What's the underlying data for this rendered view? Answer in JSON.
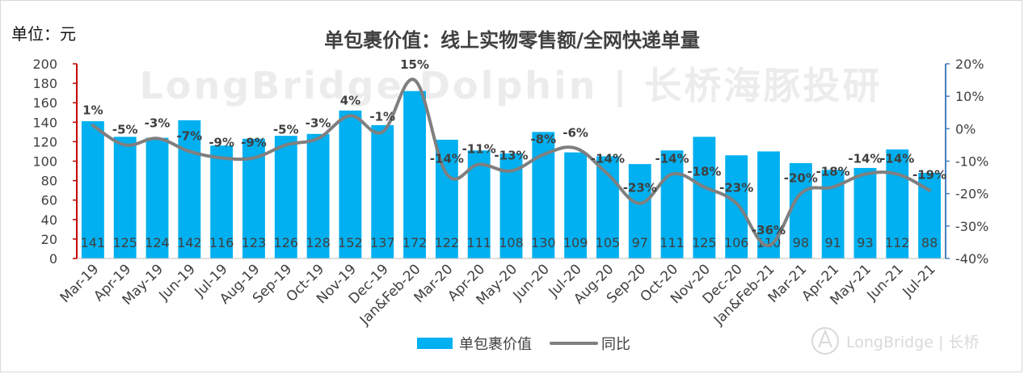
{
  "unit_label": "单位：元",
  "title": "单包裹价值：线上实物零售额/全网快递单量",
  "watermark": {
    "main": "LongBridge Dolphin | 长桥海豚投研",
    "logo": "LongBridge | 长桥"
  },
  "colors": {
    "bar": "#00b0f0",
    "line": "#7f7f7f",
    "left_axis": "#c00000",
    "right_axis": "#4a7ebb"
  },
  "chart_data": {
    "type": "bar",
    "title": "单包裹价值：线上实物零售额/全网快递单量",
    "categories": [
      "Mar-19",
      "Apr-19",
      "May-19",
      "Jun-19",
      "Jul-19",
      "Aug-19",
      "Sep-19",
      "Oct-19",
      "Nov-19",
      "Dec-19",
      "Jan&Feb-20",
      "Mar-20",
      "Apr-20",
      "May-20",
      "Jun-20",
      "Jul-20",
      "Aug-20",
      "Sep-20",
      "Oct-20",
      "Nov-20",
      "Dec-20",
      "Jan&Feb-21",
      "Mar-21",
      "Apr-21",
      "May-21",
      "Jun-21",
      "Jul-21"
    ],
    "series": [
      {
        "name": "单包裹价值",
        "type": "bar",
        "axis": "left",
        "values": [
          141,
          125,
          124,
          142,
          116,
          123,
          126,
          128,
          152,
          137,
          172,
          122,
          111,
          108,
          130,
          109,
          105,
          97,
          111,
          125,
          106,
          110,
          98,
          91,
          93,
          112,
          88
        ]
      },
      {
        "name": "同比",
        "type": "line",
        "axis": "right",
        "values": [
          1,
          -5,
          -3,
          -7,
          -9,
          -9,
          -5,
          -3,
          4,
          -1,
          15,
          -14,
          -11,
          -13,
          -8,
          -6,
          -14,
          -23,
          -14,
          -18,
          -23,
          -36,
          -20,
          -18,
          -14,
          -14,
          -19
        ],
        "labels": [
          "1%",
          "-5%",
          "-3%",
          "-7%",
          "-9%",
          "-9%",
          "-5%",
          "-3%",
          "4%",
          "-1%",
          "15%",
          "-14%",
          "-11%",
          "-13%",
          "-8%",
          "-6%",
          "-14%",
          "-23%",
          "-14%",
          "-18%",
          "-23%",
          "-36%",
          "-20%",
          "-18%",
          "-14%",
          "-14%",
          "-19%"
        ]
      }
    ],
    "y_left": {
      "min": 0,
      "max": 200,
      "step": 20,
      "ticks": [
        "0",
        "20",
        "40",
        "60",
        "80",
        "100",
        "120",
        "140",
        "160",
        "180",
        "200"
      ]
    },
    "y_right": {
      "min": -40,
      "max": 20,
      "step": 10,
      "ticks": [
        "-40%",
        "-30%",
        "-20%",
        "-10%",
        "0%",
        "10%",
        "20%"
      ]
    },
    "grid": false,
    "legend_position": "bottom-center"
  }
}
